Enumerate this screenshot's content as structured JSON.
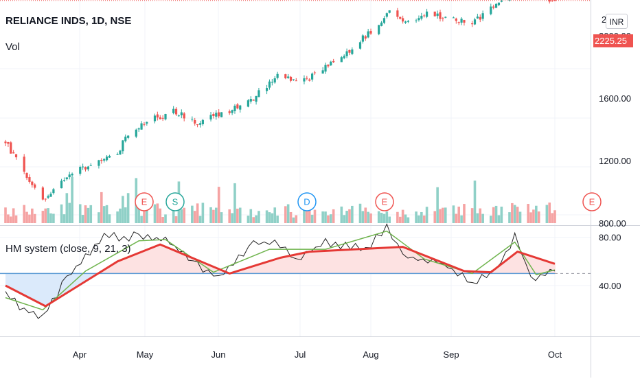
{
  "header": {
    "symbol_title": "RELIANCE INDS, 1D, NSE",
    "volume_label": "Vol",
    "currency_button": "INR"
  },
  "current_price": {
    "label": "2225.25",
    "value": 2225.25,
    "color": "#ef5350"
  },
  "price_axis_labels": [
    "2000.00",
    "1600.00",
    "1200.00",
    "800.00"
  ],
  "partial_top_label": "2",
  "indicator_axis_labels": [
    "80.00",
    "40.00"
  ],
  "month_labels": [
    "Apr",
    "May",
    "Jun",
    "Jul",
    "Aug",
    "Sep",
    "Oct"
  ],
  "event_markers": [
    {
      "letter": "E",
      "type": "earnings"
    },
    {
      "letter": "S",
      "type": "split"
    },
    {
      "letter": "D",
      "type": "dividend"
    },
    {
      "letter": "E",
      "type": "earnings"
    },
    {
      "letter": "E",
      "type": "earnings"
    }
  ],
  "indicator": {
    "label": "HM system (close, 9, 21, 3)"
  },
  "colors": {
    "up": "#26a69a",
    "down": "#ef5350",
    "vol_up": "#8fd0c7",
    "vol_down": "#f5a3a3",
    "fast_line": "#6fb44d",
    "slow_line": "#e53935",
    "raw_line": "#222222",
    "base_line": "#5b9bd5",
    "fill_above": "#fde2e2",
    "fill_below": "#dbeafb",
    "dividend": "#2196f3",
    "split": "#26a69a",
    "earnings": "#ef5350",
    "grid": "#f0f3fa"
  },
  "chart_data": [
    {
      "type": "candlestick",
      "title": "RELIANCE INDS, 1D, NSE",
      "x_range": [
        "2020-03-09",
        "2020-10-01"
      ],
      "price_knots": [
        [
          "2020-03-09",
          1320
        ],
        [
          "2020-03-16",
          1120
        ],
        [
          "2020-03-23",
          950
        ],
        [
          "2020-03-26",
          1000
        ],
        [
          "2020-03-30",
          1080
        ],
        [
          "2020-04-10",
          1180
        ],
        [
          "2020-04-20",
          1230
        ],
        [
          "2020-04-23",
          1370
        ],
        [
          "2020-04-30",
          1440
        ],
        [
          "2020-05-11",
          1520
        ],
        [
          "2020-05-20",
          1440
        ],
        [
          "2020-06-01",
          1520
        ],
        [
          "2020-06-10",
          1600
        ],
        [
          "2020-06-19",
          1740
        ],
        [
          "2020-06-30",
          1720
        ],
        [
          "2020-07-13",
          1860
        ],
        [
          "2020-07-22",
          2000
        ],
        [
          "2020-07-31",
          2150
        ],
        [
          "2020-08-06",
          2080
        ],
        [
          "2020-08-14",
          2140
        ],
        [
          "2020-08-31",
          2080
        ],
        [
          "2020-09-10",
          2220
        ],
        [
          "2020-09-18",
          2350
        ],
        [
          "2020-09-25",
          2230
        ],
        [
          "2020-10-01",
          2225
        ]
      ],
      "last_price": 2225.25,
      "ylim": [
        650,
        2450
      ],
      "volume": "relative daily volume bars, green on up days, red on down days"
    },
    {
      "type": "line",
      "title": "HM system (close, 9, 21, 3)",
      "ylim": [
        0,
        90
      ],
      "series": [
        {
          "name": "raw",
          "x": [
            "2020-03-09",
            "2020-03-16",
            "2020-03-23",
            "2020-04-01",
            "2020-04-15",
            "2020-04-28",
            "2020-05-08",
            "2020-05-20",
            "2020-05-28",
            "2020-06-10",
            "2020-06-18",
            "2020-06-26",
            "2020-07-07",
            "2020-07-22",
            "2020-07-30",
            "2020-08-05",
            "2020-08-20",
            "2020-08-31",
            "2020-09-09",
            "2020-09-16",
            "2020-09-22",
            "2020-10-01"
          ],
          "values": [
            33,
            20,
            14,
            47,
            80,
            81,
            79,
            56,
            48,
            76,
            75,
            62,
            76,
            70,
            87,
            65,
            58,
            42,
            54,
            81,
            46,
            52
          ]
        },
        {
          "name": "fast",
          "x": [
            "2020-03-09",
            "2020-03-23",
            "2020-04-08",
            "2020-04-28",
            "2020-05-08",
            "2020-05-26",
            "2020-06-16",
            "2020-07-07",
            "2020-07-30",
            "2020-08-13",
            "2020-08-31",
            "2020-09-16",
            "2020-09-24",
            "2020-10-01"
          ],
          "values": [
            30,
            20,
            52,
            77,
            78,
            51,
            70,
            70,
            85,
            62,
            50,
            76,
            49,
            53
          ]
        },
        {
          "name": "slow",
          "x": [
            "2020-03-09",
            "2020-03-24",
            "2020-04-20",
            "2020-05-06",
            "2020-06-01",
            "2020-06-20",
            "2020-07-01",
            "2020-08-05",
            "2020-08-28",
            "2020-09-07",
            "2020-09-17",
            "2020-10-01"
          ],
          "values": [
            40,
            23,
            60,
            74,
            50,
            63,
            68,
            72,
            52,
            51,
            68,
            58
          ]
        },
        {
          "name": "base",
          "x": [
            "2020-03-09",
            "2020-10-01"
          ],
          "values": [
            50,
            50
          ]
        }
      ]
    }
  ]
}
